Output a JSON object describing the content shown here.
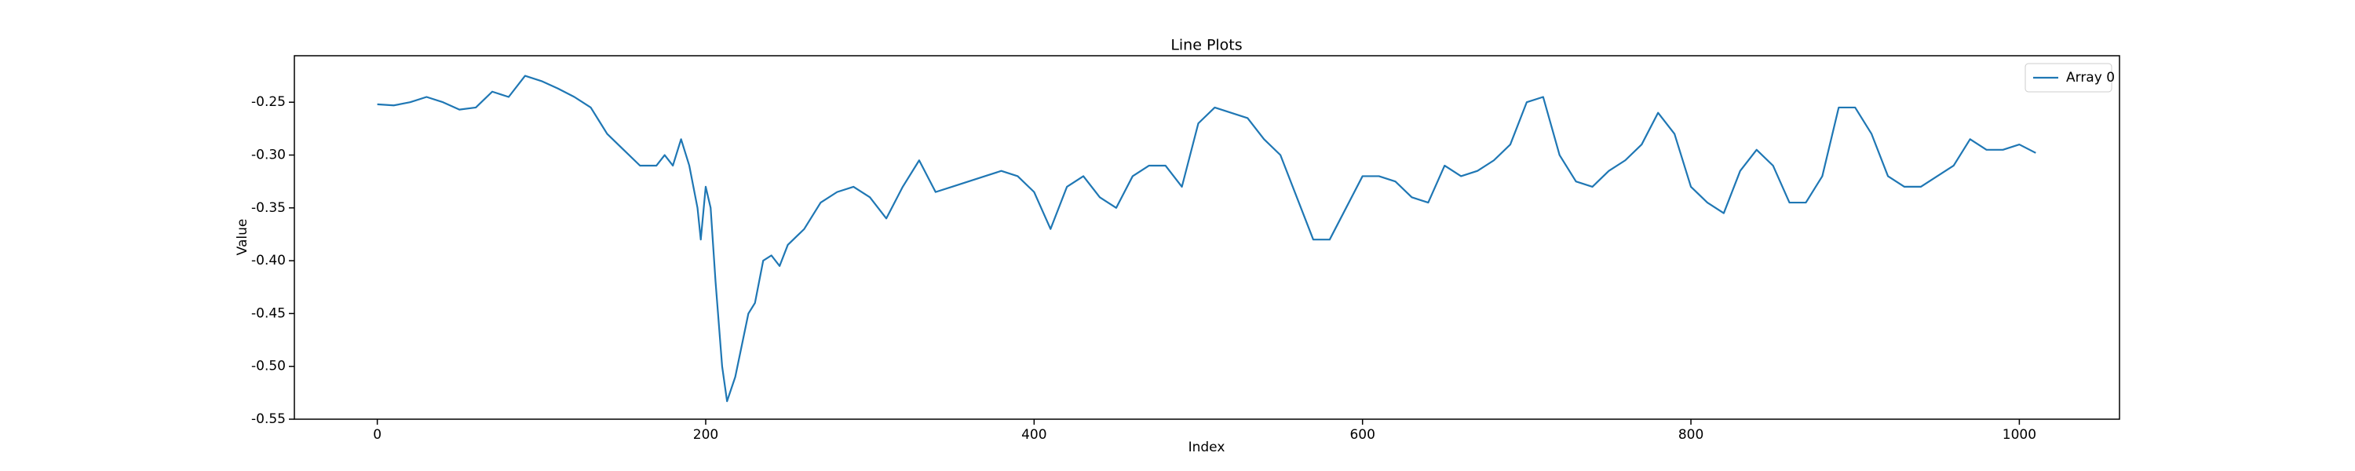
{
  "chart_data": {
    "type": "line",
    "title": "Line Plots",
    "x_label": "Index",
    "y_label": "Value",
    "x": [
      0,
      10,
      20,
      30,
      40,
      50,
      60,
      70,
      80,
      90,
      100,
      110,
      120,
      130,
      140,
      150,
      160,
      170,
      175,
      180,
      185,
      190,
      195,
      197,
      200,
      203,
      206,
      210,
      213,
      218,
      222,
      226,
      230,
      235,
      240,
      245,
      250,
      260,
      270,
      280,
      290,
      300,
      310,
      320,
      330,
      340,
      350,
      360,
      370,
      380,
      390,
      400,
      410,
      420,
      430,
      440,
      450,
      460,
      470,
      480,
      490,
      500,
      510,
      520,
      530,
      540,
      550,
      560,
      570,
      580,
      590,
      600,
      610,
      620,
      630,
      640,
      650,
      660,
      670,
      680,
      690,
      700,
      710,
      720,
      730,
      740,
      750,
      760,
      770,
      780,
      790,
      800,
      810,
      820,
      830,
      840,
      850,
      860,
      870,
      880,
      890,
      900,
      910,
      920,
      930,
      940,
      950,
      960,
      970,
      980,
      990,
      1000,
      1010
    ],
    "series": [
      {
        "name": "Array 0",
        "color": "#1f77b4",
        "values": [
          -0.252,
          -0.253,
          -0.25,
          -0.245,
          -0.25,
          -0.257,
          -0.255,
          -0.24,
          -0.245,
          -0.225,
          -0.23,
          -0.237,
          -0.245,
          -0.255,
          -0.28,
          -0.295,
          -0.31,
          -0.31,
          -0.3,
          -0.31,
          -0.285,
          -0.31,
          -0.35,
          -0.38,
          -0.33,
          -0.35,
          -0.42,
          -0.5,
          -0.533,
          -0.51,
          -0.48,
          -0.45,
          -0.44,
          -0.4,
          -0.395,
          -0.405,
          -0.385,
          -0.37,
          -0.345,
          -0.335,
          -0.33,
          -0.34,
          -0.36,
          -0.33,
          -0.305,
          -0.335,
          -0.33,
          -0.325,
          -0.32,
          -0.315,
          -0.32,
          -0.335,
          -0.37,
          -0.33,
          -0.32,
          -0.34,
          -0.35,
          -0.32,
          -0.31,
          -0.31,
          -0.33,
          -0.27,
          -0.255,
          -0.26,
          -0.265,
          -0.285,
          -0.3,
          -0.34,
          -0.38,
          -0.38,
          -0.35,
          -0.32,
          -0.32,
          -0.325,
          -0.34,
          -0.345,
          -0.31,
          -0.32,
          -0.315,
          -0.305,
          -0.29,
          -0.25,
          -0.245,
          -0.3,
          -0.325,
          -0.33,
          -0.315,
          -0.305,
          -0.29,
          -0.26,
          -0.28,
          -0.33,
          -0.345,
          -0.355,
          -0.315,
          -0.295,
          -0.31,
          -0.345,
          -0.345,
          -0.32,
          -0.255,
          -0.255,
          -0.28,
          -0.32,
          -0.33,
          -0.33,
          -0.32,
          -0.31,
          -0.285,
          -0.295,
          -0.295,
          -0.29,
          -0.298
        ]
      }
    ],
    "xlim": [
      -50.5,
      1061
    ],
    "ylim": [
      -0.55,
      -0.206
    ],
    "xticks": [
      0,
      200,
      400,
      600,
      800,
      1000
    ],
    "yticks": [
      -0.55,
      {
        "value": -0.5,
        "label": "-0.50"
      },
      -0.45,
      {
        "value": -0.4,
        "label": "-0.40"
      },
      -0.35,
      {
        "value": -0.3,
        "label": "-0.30"
      },
      -0.25
    ],
    "legend": "upper right"
  }
}
